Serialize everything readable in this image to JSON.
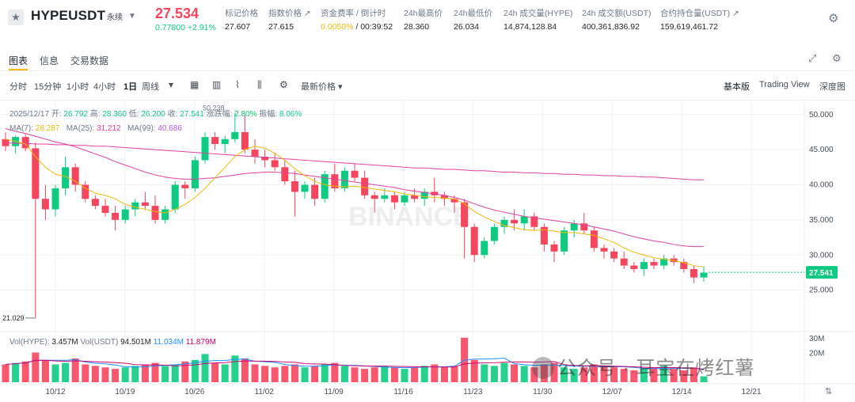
{
  "ticker": {
    "symbol": "HYPEUSDT",
    "contract_type": "永续",
    "last_price": "27.534",
    "change": "0.77800 +2.91%",
    "stats": [
      {
        "label": "标记价格",
        "value": "27.607",
        "accent": ""
      },
      {
        "label": "指数价格 ↗",
        "value": "27.615",
        "accent": ""
      },
      {
        "label": "资金费率 / 倒计时",
        "value": " / 00:39:52",
        "accent": "0.0050%"
      },
      {
        "label": "24h最高价",
        "value": "28.360",
        "accent": ""
      },
      {
        "label": "24h最低价",
        "value": "26.034",
        "accent": ""
      },
      {
        "label": "24h 成交量(HYPE)",
        "value": "14,874,128.84",
        "accent": ""
      },
      {
        "label": "24h 成交额(USDT)",
        "value": "400,361,836.92",
        "accent": ""
      },
      {
        "label": "合约持仓量(USDT) ↗",
        "value": "159,619,461.72",
        "accent": ""
      }
    ]
  },
  "tabs": [
    "图表",
    "信息",
    "交易数据"
  ],
  "toolbar": {
    "timeframes": [
      "分时",
      "15分钟",
      "1小时",
      "4小时",
      "1日",
      "周线"
    ],
    "active_timeframe": "1日",
    "price_type": "最新价格 ▾",
    "views": [
      "基本版",
      "Trading View",
      "深度图"
    ]
  },
  "legend": {
    "date": "2025/12/17",
    "open_label": "开:",
    "open": "26.792",
    "high_label": "高:",
    "high": "28.360",
    "low_label": "低:",
    "low": "26.200",
    "close_label": "收:",
    "close": "27.541",
    "chg_label": "涨跌幅:",
    "chg": "2.80%",
    "amp_label": "振幅:",
    "amp": "8.06%",
    "ma7_label": "MA(7):",
    "ma7": "28.287",
    "ma25_label": "MA(25):",
    "ma25": "31.212",
    "ma99_label": "MA(99):",
    "ma99": "40.686",
    "vol_hype_label": "Vol(HYPE):",
    "vol_hype": "3.457M",
    "vol_usdt_label": "Vol(USDT)",
    "vol_usdt": "94.501M",
    "vol_ma1": "11.034M",
    "vol_ma2": "11.879M"
  },
  "colors": {
    "up": "#0ecb81",
    "down": "#f6465d",
    "ma7": "#f0b90b",
    "ma25": "#e040a0",
    "ma99": "#b659ff",
    "vol_ma1": "#1e90ff",
    "vol_ma2": "#d0006f",
    "accent": "#f0b90b"
  },
  "chart_data": {
    "type": "candlestick",
    "title": "HYPEUSDT 1D",
    "x_ticks": [
      "10/12",
      "10/19",
      "10/26",
      "11/02",
      "11/09",
      "11/16",
      "11/23",
      "11/30",
      "12/07",
      "12/14",
      "12/21"
    ],
    "y_ticks": [
      "50.000",
      "45.000",
      "40.000",
      "35.000",
      "30.000",
      "25.000"
    ],
    "ylim": [
      20,
      52
    ],
    "current_price_label": "27.541",
    "annotations": {
      "max": "50.238",
      "min": "21.029"
    },
    "volume_ticks": [
      "30M",
      "20M"
    ],
    "volume_ylim": [
      0,
      32
    ],
    "ohlc": [
      [
        46.5,
        47.5,
        44.8,
        45.5
      ],
      [
        45.5,
        47.0,
        44.5,
        46.8
      ],
      [
        46.8,
        47.2,
        44.8,
        45.2
      ],
      [
        45.2,
        46.0,
        21.0,
        38.0
      ],
      [
        38.0,
        40.0,
        35.0,
        36.5
      ],
      [
        36.5,
        40.0,
        35.5,
        39.5
      ],
      [
        39.5,
        44.0,
        38.5,
        42.5
      ],
      [
        42.5,
        43.0,
        39.0,
        40.0
      ],
      [
        40.0,
        40.5,
        37.5,
        38.0
      ],
      [
        38.0,
        38.5,
        36.5,
        37.0
      ],
      [
        37.0,
        38.0,
        35.5,
        36.0
      ],
      [
        36.0,
        37.0,
        33.5,
        35.0
      ],
      [
        35.0,
        37.0,
        34.5,
        36.5
      ],
      [
        36.5,
        38.0,
        35.5,
        37.5
      ],
      [
        37.5,
        39.0,
        36.5,
        37.0
      ],
      [
        37.0,
        38.5,
        34.5,
        35.0
      ],
      [
        35.0,
        37.0,
        34.5,
        36.5
      ],
      [
        36.5,
        40.5,
        36.0,
        40.0
      ],
      [
        40.0,
        40.5,
        38.0,
        39.5
      ],
      [
        39.5,
        44.0,
        39.0,
        43.5
      ],
      [
        43.5,
        47.5,
        43.0,
        46.8
      ],
      [
        46.8,
        47.5,
        45.0,
        45.8
      ],
      [
        45.8,
        47.0,
        44.5,
        46.5
      ],
      [
        46.5,
        50.2,
        46.0,
        47.5
      ],
      [
        47.5,
        50.0,
        44.5,
        45.0
      ],
      [
        45.0,
        46.5,
        43.0,
        44.0
      ],
      [
        44.0,
        45.0,
        42.5,
        43.5
      ],
      [
        43.5,
        44.5,
        42.0,
        42.5
      ],
      [
        42.5,
        43.5,
        40.0,
        40.5
      ],
      [
        40.5,
        42.0,
        35.5,
        39.0
      ],
      [
        39.0,
        40.5,
        38.0,
        40.0
      ],
      [
        40.0,
        41.0,
        37.0,
        38.0
      ],
      [
        38.0,
        42.0,
        37.5,
        41.5
      ],
      [
        41.5,
        43.0,
        39.0,
        39.5
      ],
      [
        39.5,
        42.5,
        39.0,
        42.0
      ],
      [
        42.0,
        43.0,
        40.5,
        41.0
      ],
      [
        41.0,
        42.0,
        38.0,
        38.5
      ],
      [
        38.5,
        39.0,
        36.0,
        38.0
      ],
      [
        38.0,
        39.5,
        37.5,
        38.5
      ],
      [
        38.5,
        39.0,
        36.5,
        37.5
      ],
      [
        37.5,
        39.0,
        37.0,
        38.5
      ],
      [
        38.5,
        39.5,
        37.5,
        38.0
      ],
      [
        38.0,
        39.5,
        37.0,
        39.0
      ],
      [
        39.0,
        41.0,
        37.5,
        38.5
      ],
      [
        38.5,
        39.0,
        37.0,
        38.0
      ],
      [
        38.0,
        38.5,
        36.0,
        37.5
      ],
      [
        37.5,
        38.0,
        29.5,
        34.0
      ],
      [
        34.0,
        34.5,
        29.0,
        30.0
      ],
      [
        30.0,
        32.5,
        29.5,
        32.0
      ],
      [
        32.0,
        34.5,
        31.5,
        34.0
      ],
      [
        34.0,
        35.5,
        33.0,
        35.0
      ],
      [
        35.0,
        36.5,
        33.5,
        34.5
      ],
      [
        34.5,
        36.5,
        33.5,
        35.5
      ],
      [
        35.5,
        36.0,
        33.5,
        34.0
      ],
      [
        34.0,
        34.5,
        30.5,
        31.5
      ],
      [
        31.5,
        32.0,
        29.0,
        30.5
      ],
      [
        30.5,
        34.0,
        30.0,
        33.5
      ],
      [
        33.5,
        35.0,
        32.5,
        34.5
      ],
      [
        34.5,
        36.0,
        33.0,
        33.5
      ],
      [
        33.5,
        34.0,
        30.5,
        31.0
      ],
      [
        31.0,
        31.5,
        29.5,
        30.5
      ],
      [
        30.5,
        31.0,
        29.0,
        29.5
      ],
      [
        29.5,
        30.5,
        28.0,
        28.5
      ],
      [
        28.5,
        29.0,
        27.5,
        28.0
      ],
      [
        28.0,
        29.5,
        27.0,
        29.0
      ],
      [
        29.0,
        29.5,
        28.0,
        28.5
      ],
      [
        28.5,
        30.0,
        28.0,
        29.5
      ],
      [
        29.5,
        30.0,
        28.5,
        29.0
      ],
      [
        29.0,
        29.5,
        27.5,
        28.0
      ],
      [
        28.0,
        28.5,
        26.0,
        26.8
      ],
      [
        26.8,
        28.4,
        26.2,
        27.5
      ]
    ],
    "volume": [
      12,
      13,
      14,
      20,
      15,
      12,
      13,
      16,
      12,
      11,
      10,
      9,
      10,
      11,
      12,
      13,
      11,
      12,
      14,
      15,
      19,
      13,
      12,
      18,
      16,
      12,
      11,
      10,
      11,
      12,
      10,
      11,
      12,
      13,
      11,
      10,
      9,
      10,
      11,
      10,
      9,
      10,
      11,
      12,
      10,
      11,
      30,
      15,
      12,
      11,
      13,
      12,
      11,
      10,
      12,
      13,
      10,
      9,
      10,
      12,
      11,
      10,
      9,
      8,
      9,
      10,
      11,
      9,
      8,
      10,
      4
    ],
    "ma7": [
      46.5,
      46.2,
      45.8,
      44.0,
      42.5,
      41.5,
      41.2,
      40.5,
      39.5,
      38.8,
      38.5,
      38.0,
      37.2,
      36.8,
      36.5,
      36.2,
      36.0,
      36.5,
      37.2,
      38.2,
      39.5,
      41.0,
      42.5,
      44.0,
      45.0,
      45.5,
      45.2,
      44.5,
      43.5,
      42.3,
      41.3,
      40.5,
      40.0,
      39.8,
      39.7,
      39.8,
      39.6,
      39.4,
      39.2,
      39.0,
      38.7,
      38.5,
      38.3,
      38.2,
      38.1,
      38.0,
      37.3,
      36.2,
      35.4,
      34.8,
      34.2,
      33.9,
      33.6,
      33.5,
      33.6,
      33.4,
      33.2,
      33.2,
      33.0,
      32.8,
      32.3,
      31.8,
      31.0,
      30.4,
      30.0,
      29.6,
      29.4,
      29.2,
      28.9,
      28.5,
      28.3
    ],
    "ma25": [
      48.0,
      47.6,
      47.3,
      46.9,
      46.5,
      46.1,
      45.8,
      45.4,
      44.9,
      44.4,
      43.9,
      43.3,
      42.8,
      42.3,
      41.8,
      41.4,
      41.1,
      40.9,
      40.8,
      40.8,
      40.9,
      41.0,
      41.2,
      41.4,
      41.6,
      41.7,
      41.8,
      41.8,
      41.7,
      41.6,
      41.4,
      41.2,
      41.0,
      40.8,
      40.6,
      40.4,
      40.2,
      40.0,
      39.8,
      39.6,
      39.3,
      39.1,
      38.9,
      38.7,
      38.5,
      38.2,
      37.8,
      37.3,
      36.8,
      36.4,
      36.1,
      35.8,
      35.5,
      35.3,
      35.1,
      34.9,
      34.7,
      34.5,
      34.3,
      34.0,
      33.7,
      33.4,
      33.0,
      32.6,
      32.3,
      32.0,
      31.8,
      31.5,
      31.3,
      31.2,
      31.2
    ],
    "ma99": [
      46.0,
      45.9,
      45.9,
      45.8,
      45.8,
      45.7,
      45.7,
      45.6,
      45.6,
      45.5,
      45.5,
      45.4,
      45.3,
      45.2,
      45.1,
      45.0,
      44.9,
      44.8,
      44.7,
      44.6,
      44.5,
      44.4,
      44.3,
      44.2,
      44.1,
      44.0,
      43.9,
      43.8,
      43.7,
      43.6,
      43.5,
      43.4,
      43.3,
      43.2,
      43.1,
      43.0,
      42.9,
      42.8,
      42.7,
      42.6,
      42.5,
      42.4,
      42.4,
      42.3,
      42.2,
      42.2,
      42.1,
      42.0,
      42.0,
      41.9,
      41.8,
      41.8,
      41.7,
      41.7,
      41.6,
      41.6,
      41.5,
      41.5,
      41.4,
      41.4,
      41.3,
      41.3,
      41.2,
      41.2,
      41.1,
      41.1,
      41.0,
      40.9,
      40.8,
      40.7,
      40.7
    ]
  },
  "watermark": "公众号 · 耳宝在烤红薯"
}
